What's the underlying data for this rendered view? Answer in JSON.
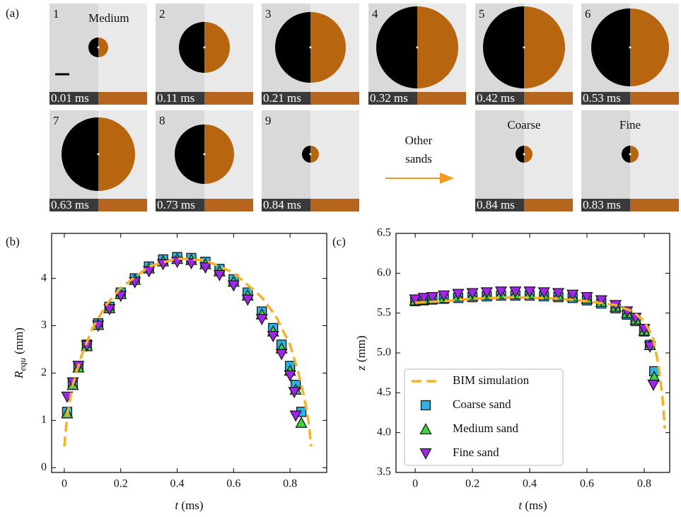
{
  "panel_a": {
    "label": "(a)",
    "frames": [
      {
        "number": "1",
        "caption": "Medium",
        "time": "0.01 ms"
      },
      {
        "number": "2",
        "time": "0.11 ms"
      },
      {
        "number": "3",
        "time": "0.21 ms"
      },
      {
        "number": "4",
        "time": "0.32 ms"
      },
      {
        "number": "5",
        "time": "0.42 ms"
      },
      {
        "number": "6",
        "time": "0.53 ms"
      },
      {
        "number": "7",
        "time": "0.63 ms"
      },
      {
        "number": "8",
        "time": "0.73 ms"
      },
      {
        "number": "9",
        "time": "0.84 ms"
      },
      {
        "caption": "Coarse",
        "time": "0.84 ms"
      },
      {
        "caption": "Fine",
        "time": "0.83 ms"
      }
    ],
    "arrow_text": [
      "Other",
      "sands"
    ]
  },
  "chart_data": [
    {
      "type": "scatter",
      "panel_label": "(b)",
      "x_label": {
        "symbol": "t",
        "unit": "(ms)"
      },
      "y_label": {
        "symbol": "R",
        "subscript": "equ",
        "unit": "(mm)"
      },
      "xlim": [
        -0.045,
        0.93
      ],
      "ylim": [
        -0.1,
        4.95
      ],
      "xticks": [
        0,
        0.2,
        0.4,
        0.6,
        0.8
      ],
      "yticks": [
        0,
        1,
        2,
        3,
        4
      ],
      "series": [
        {
          "name": "Coarse sand",
          "marker": "square",
          "color": "#2ab4e6",
          "x": [
            0.01,
            0.03,
            0.05,
            0.08,
            0.12,
            0.16,
            0.2,
            0.25,
            0.3,
            0.35,
            0.4,
            0.45,
            0.5,
            0.55,
            0.6,
            0.65,
            0.7,
            0.74,
            0.77,
            0.8,
            0.82,
            0.84
          ],
          "values": [
            1.18,
            1.78,
            2.15,
            2.6,
            3.05,
            3.4,
            3.7,
            4.0,
            4.25,
            4.4,
            4.45,
            4.43,
            4.35,
            4.2,
            3.98,
            3.7,
            3.3,
            2.95,
            2.6,
            2.15,
            1.75,
            1.18
          ]
        },
        {
          "name": "Medium sand",
          "marker": "triangle-up",
          "color": "#3fd13f",
          "x": [
            0.01,
            0.03,
            0.05,
            0.08,
            0.12,
            0.16,
            0.2,
            0.25,
            0.3,
            0.35,
            0.4,
            0.45,
            0.5,
            0.55,
            0.6,
            0.65,
            0.7,
            0.74,
            0.77,
            0.8,
            0.82,
            0.84
          ],
          "values": [
            1.15,
            1.75,
            2.12,
            2.57,
            3.02,
            3.37,
            3.67,
            3.97,
            4.21,
            4.36,
            4.41,
            4.39,
            4.3,
            4.15,
            3.93,
            3.64,
            3.24,
            2.88,
            2.52,
            2.05,
            1.65,
            0.95
          ]
        },
        {
          "name": "Fine sand",
          "marker": "triangle-down",
          "color": "#a424ee",
          "x": [
            0.01,
            0.03,
            0.05,
            0.08,
            0.12,
            0.16,
            0.2,
            0.25,
            0.3,
            0.35,
            0.4,
            0.45,
            0.5,
            0.55,
            0.6,
            0.65,
            0.7,
            0.74,
            0.77,
            0.8,
            0.815,
            0.82
          ],
          "values": [
            1.5,
            1.8,
            2.15,
            2.58,
            3.0,
            3.35,
            3.63,
            3.92,
            4.15,
            4.3,
            4.35,
            4.32,
            4.23,
            4.07,
            3.85,
            3.55,
            3.14,
            2.78,
            2.4,
            1.95,
            1.6,
            1.1
          ]
        },
        {
          "name": "BIM simulation",
          "linestyle": "dashed",
          "color": "#f4b22a",
          "x": [
            0,
            0.01,
            0.03,
            0.06,
            0.1,
            0.15,
            0.2,
            0.3,
            0.4,
            0.5,
            0.6,
            0.7,
            0.75,
            0.8,
            0.83,
            0.85,
            0.865,
            0.875
          ],
          "values": [
            0.45,
            1.1,
            1.75,
            2.35,
            2.95,
            3.45,
            3.8,
            4.25,
            4.42,
            4.38,
            4.12,
            3.6,
            3.2,
            2.6,
            2.0,
            1.5,
            1.0,
            0.45
          ]
        }
      ]
    },
    {
      "type": "scatter",
      "panel_label": "(c)",
      "x_label": {
        "symbol": "t",
        "unit": "(ms)"
      },
      "y_label": {
        "symbol": "z",
        "unit": "(mm)"
      },
      "xlim": [
        -0.067,
        0.889
      ],
      "ylim": [
        3.5,
        6.5
      ],
      "xticks": [
        0,
        0.2,
        0.4,
        0.6,
        0.8
      ],
      "yticks": [
        3.5,
        {
          "value": 4,
          "label": "4.0"
        },
        4.5,
        {
          "value": 5,
          "label": "5.0"
        },
        5.5,
        {
          "value": 6,
          "label": "6.0"
        },
        6.5
      ],
      "legend": "lower left",
      "series": [
        {
          "name": "BIM simulation",
          "linestyle": "dashed",
          "color": "#f4b22a",
          "x": [
            0,
            0.1,
            0.2,
            0.35,
            0.5,
            0.6,
            0.7,
            0.76,
            0.8,
            0.83,
            0.85,
            0.865,
            0.872
          ],
          "values": [
            5.63,
            5.65,
            5.68,
            5.7,
            5.68,
            5.65,
            5.6,
            5.52,
            5.4,
            5.2,
            4.85,
            4.4,
            4.05
          ]
        },
        {
          "name": "Coarse sand",
          "marker": "square",
          "color": "#2ab4e6",
          "x": [
            0,
            0.03,
            0.06,
            0.1,
            0.15,
            0.2,
            0.25,
            0.3,
            0.35,
            0.4,
            0.45,
            0.5,
            0.55,
            0.6,
            0.65,
            0.7,
            0.74,
            0.77,
            0.8,
            0.82,
            0.835
          ],
          "values": [
            5.65,
            5.66,
            5.67,
            5.68,
            5.69,
            5.7,
            5.71,
            5.72,
            5.72,
            5.72,
            5.71,
            5.7,
            5.69,
            5.66,
            5.62,
            5.56,
            5.48,
            5.4,
            5.27,
            5.1,
            4.77
          ]
        },
        {
          "name": "Medium sand",
          "marker": "triangle-up",
          "color": "#3fd13f",
          "x": [
            0,
            0.03,
            0.06,
            0.1,
            0.15,
            0.2,
            0.25,
            0.3,
            0.35,
            0.4,
            0.45,
            0.5,
            0.55,
            0.6,
            0.65,
            0.7,
            0.74,
            0.77,
            0.8,
            0.82,
            0.835
          ],
          "values": [
            5.66,
            5.67,
            5.68,
            5.69,
            5.71,
            5.72,
            5.73,
            5.74,
            5.74,
            5.74,
            5.73,
            5.72,
            5.71,
            5.68,
            5.64,
            5.58,
            5.5,
            5.42,
            5.28,
            5.1,
            4.7
          ]
        },
        {
          "name": "Fine sand",
          "marker": "triangle-down",
          "color": "#a424ee",
          "x": [
            0,
            0.03,
            0.06,
            0.1,
            0.15,
            0.2,
            0.25,
            0.3,
            0.35,
            0.4,
            0.45,
            0.5,
            0.55,
            0.6,
            0.65,
            0.7,
            0.74,
            0.77,
            0.8,
            0.82,
            0.832
          ],
          "values": [
            5.67,
            5.69,
            5.7,
            5.72,
            5.74,
            5.75,
            5.76,
            5.77,
            5.77,
            5.77,
            5.76,
            5.75,
            5.73,
            5.7,
            5.66,
            5.6,
            5.52,
            5.44,
            5.3,
            5.08,
            4.6
          ]
        }
      ]
    }
  ]
}
